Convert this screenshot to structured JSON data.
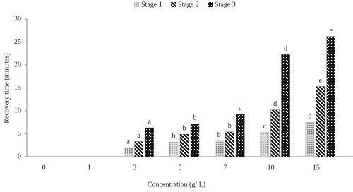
{
  "chart_data": {
    "type": "bar",
    "xlabel": "Concentration (g/ L)",
    "ylabel": "Recovery time (minutes)",
    "categories": [
      "0",
      "1",
      "3",
      "5",
      "7",
      "10",
      "15"
    ],
    "series": [
      {
        "name": "Stage 1",
        "color": "#777777",
        "values": [
          0,
          0,
          2,
          3.2,
          3.4,
          5.3,
          7.5
        ],
        "letters": [
          null,
          null,
          "a",
          "b",
          "b",
          "c",
          "d"
        ]
      },
      {
        "name": "Stage 2",
        "color": "#000000",
        "values": [
          0,
          0,
          3.3,
          4.9,
          5.4,
          10.2,
          15.3
        ],
        "letters": [
          null,
          null,
          "a",
          "b",
          "b",
          "d",
          "e"
        ]
      },
      {
        "name": "Stage 3",
        "color": "#111111",
        "values": [
          0,
          0,
          6.3,
          7.2,
          9.3,
          22.3,
          26.2
        ],
        "letters": [
          null,
          null,
          "a",
          "b",
          "c",
          "d",
          "e"
        ]
      }
    ],
    "ylim": [
      0,
      30
    ],
    "yticks": [
      0,
      5,
      10,
      15,
      20,
      25,
      30
    ]
  }
}
